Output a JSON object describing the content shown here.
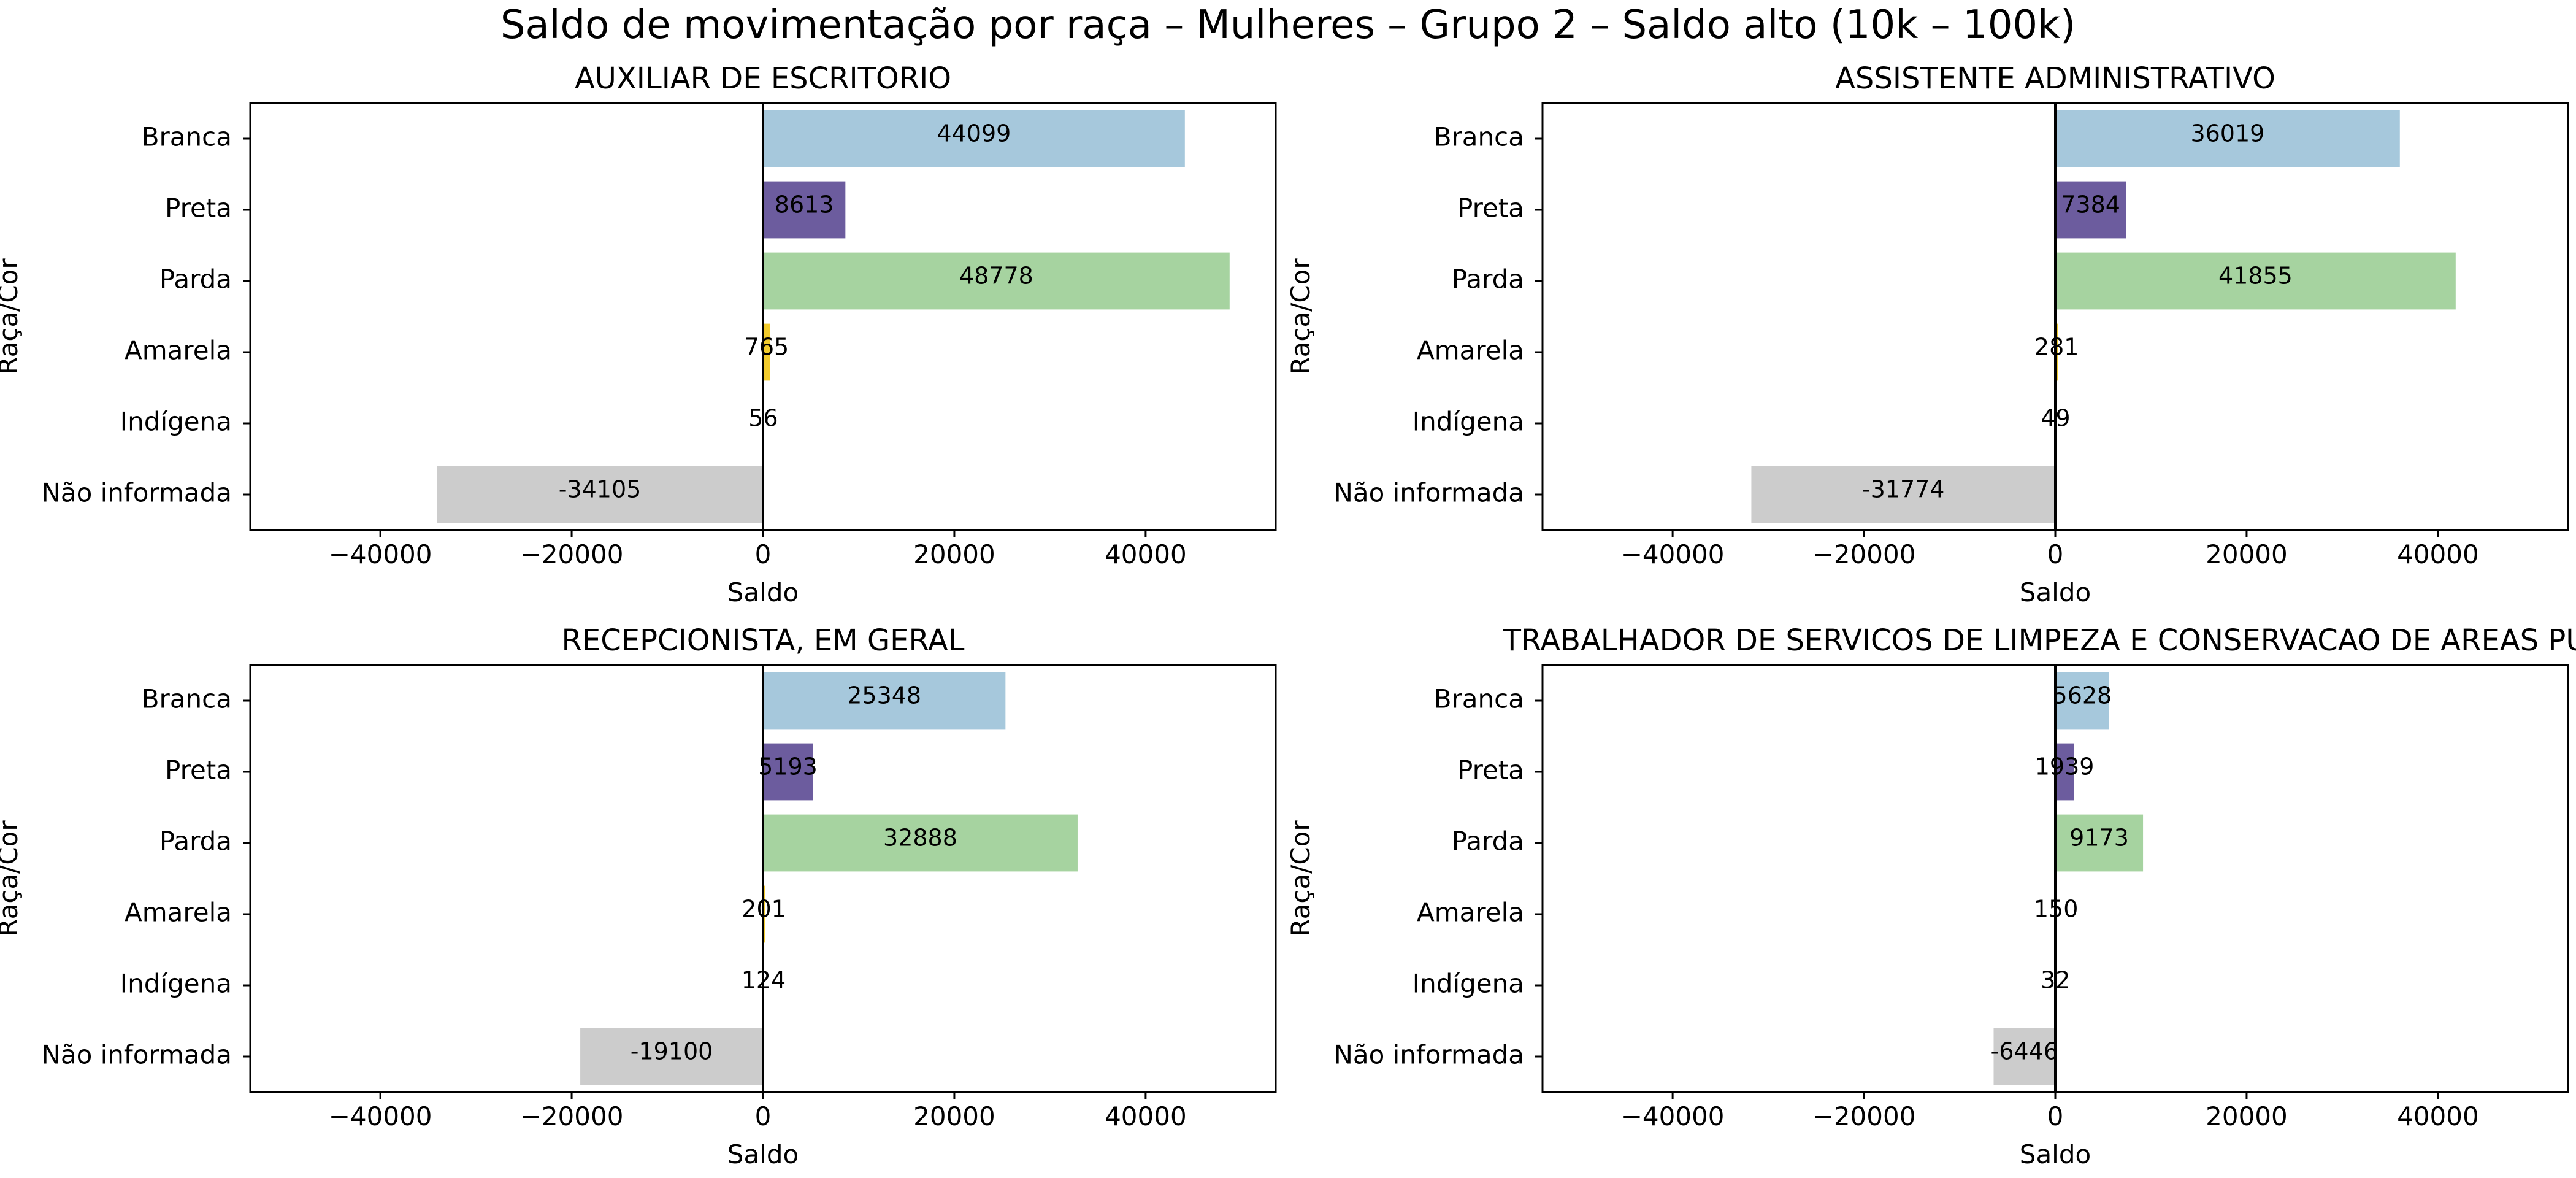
{
  "title": "Saldo de movimentação por raça – Mulheres – Grupo 2 – Saldo alto (10k – 100k)",
  "chart_data": [
    {
      "type": "bar",
      "orientation": "horizontal",
      "title": "AUXILIAR DE ESCRITORIO",
      "xlabel": "Saldo",
      "ylabel": "Raça/Cor",
      "categories": [
        "Branca",
        "Preta",
        "Parda",
        "Amarela",
        "Indígena",
        "Não informada"
      ],
      "values": [
        44099,
        8613,
        48778,
        765,
        56,
        -34105
      ],
      "xlim": [
        -53600,
        53600
      ],
      "xticks": [
        -40000,
        -20000,
        0,
        20000,
        40000
      ],
      "grid": false
    },
    {
      "type": "bar",
      "orientation": "horizontal",
      "title": "ASSISTENTE ADMINISTRATIVO",
      "xlabel": "Saldo",
      "ylabel": "Raça/Cor",
      "categories": [
        "Branca",
        "Preta",
        "Parda",
        "Amarela",
        "Indígena",
        "Não informada"
      ],
      "values": [
        36019,
        7384,
        41855,
        281,
        49,
        -31774
      ],
      "xlim": [
        -53600,
        53600
      ],
      "xticks": [
        -40000,
        -20000,
        0,
        20000,
        40000
      ],
      "grid": false
    },
    {
      "type": "bar",
      "orientation": "horizontal",
      "title": "RECEPCIONISTA, EM GERAL",
      "xlabel": "Saldo",
      "ylabel": "Raça/Cor",
      "categories": [
        "Branca",
        "Preta",
        "Parda",
        "Amarela",
        "Indígena",
        "Não informada"
      ],
      "values": [
        25348,
        5193,
        32888,
        201,
        124,
        -19100
      ],
      "xlim": [
        -53600,
        53600
      ],
      "xticks": [
        -40000,
        -20000,
        0,
        20000,
        40000
      ],
      "grid": false
    },
    {
      "type": "bar",
      "orientation": "horizontal",
      "title": "TRABALHADOR DE SERVICOS DE LIMPEZA E CONSERVACAO DE AREAS PUB",
      "xlabel": "Saldo",
      "ylabel": "Raça/Cor",
      "categories": [
        "Branca",
        "Preta",
        "Parda",
        "Amarela",
        "Indígena",
        "Não informada"
      ],
      "values": [
        5628,
        1939,
        9173,
        150,
        32,
        -6446
      ],
      "xlim": [
        -53600,
        53600
      ],
      "xticks": [
        -40000,
        -20000,
        0,
        20000,
        40000
      ],
      "grid": false
    }
  ],
  "colors": {
    "Branca": "#a6c8dc",
    "Preta": "#6c5c9e",
    "Parda": "#a6d3a0",
    "Amarela": "#f1cb2c",
    "Indígena": "#bcdcb9",
    "Não informada": "#cccccc"
  }
}
